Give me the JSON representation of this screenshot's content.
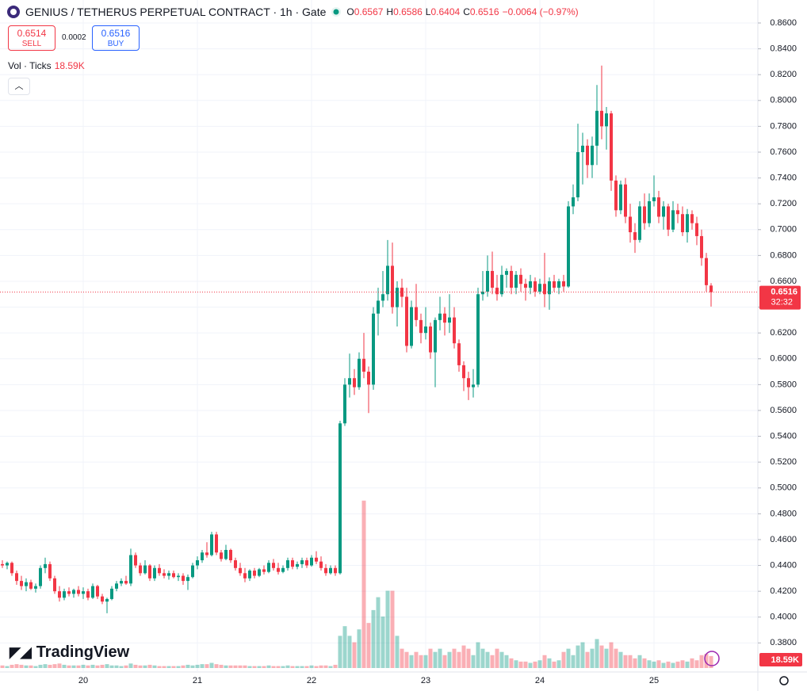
{
  "header": {
    "title": "GENIUS / TETHERUS PERPETUAL CONTRACT · 1h · Gate",
    "ohlc": [
      {
        "label": "O",
        "value": "0.6567"
      },
      {
        "label": "H",
        "value": "0.6586"
      },
      {
        "label": "L",
        "value": "0.6404"
      },
      {
        "label": "C",
        "value": "0.6516"
      }
    ],
    "change": "−0.0064 (−0.97%)",
    "sell": {
      "price": "0.6514",
      "label": "SELL"
    },
    "spread": "0.0002",
    "buy": {
      "price": "0.6516",
      "label": "BUY"
    },
    "volume_label": "Vol · Ticks",
    "volume_value": "18.59K",
    "brand": "TradingView"
  },
  "chart_data": {
    "type": "candlestick",
    "up_color": "#089981",
    "down_color": "#f23645",
    "ylim": [
      0.3575,
      0.8778
    ],
    "vlim": [
      0,
      320
    ],
    "yticks": [
      {
        "value": 0.86,
        "label": "0.8600"
      },
      {
        "value": 0.84,
        "label": "0.8400"
      },
      {
        "value": 0.82,
        "label": "0.8200"
      },
      {
        "value": 0.8,
        "label": "0.8000"
      },
      {
        "value": 0.78,
        "label": "0.7800"
      },
      {
        "value": 0.76,
        "label": "0.7600"
      },
      {
        "value": 0.74,
        "label": "0.7400"
      },
      {
        "value": 0.72,
        "label": "0.7200"
      },
      {
        "value": 0.7,
        "label": "0.7000"
      },
      {
        "value": 0.68,
        "label": "0.6800"
      },
      {
        "value": 0.66,
        "label": "0.6600"
      },
      {
        "value": 0.64,
        "label": "0.6400"
      },
      {
        "value": 0.62,
        "label": "0.6200"
      },
      {
        "value": 0.6,
        "label": "0.6000"
      },
      {
        "value": 0.58,
        "label": "0.5800"
      },
      {
        "value": 0.56,
        "label": "0.5600"
      },
      {
        "value": 0.54,
        "label": "0.5400"
      },
      {
        "value": 0.52,
        "label": "0.5200"
      },
      {
        "value": 0.5,
        "label": "0.5000"
      },
      {
        "value": 0.48,
        "label": "0.4800"
      },
      {
        "value": 0.46,
        "label": "0.4600"
      },
      {
        "value": 0.44,
        "label": "0.4400"
      },
      {
        "value": 0.42,
        "label": "0.4200"
      },
      {
        "value": 0.4,
        "label": "0.4000"
      },
      {
        "value": 0.38,
        "label": "0.3800"
      }
    ],
    "xticks": [
      20,
      21,
      22,
      23,
      24,
      25
    ],
    "last_price_label": "0.6516",
    "countdown": "32:32",
    "last_volume_label": "18.59K",
    "candles": [
      [
        0.441,
        0.444,
        0.438,
        0.44,
        4
      ],
      [
        0.44,
        0.443,
        0.437,
        0.442,
        3
      ],
      [
        0.442,
        0.443,
        0.432,
        0.434,
        5
      ],
      [
        0.434,
        0.436,
        0.425,
        0.428,
        6
      ],
      [
        0.428,
        0.432,
        0.421,
        0.424,
        5
      ],
      [
        0.424,
        0.43,
        0.42,
        0.427,
        4
      ],
      [
        0.427,
        0.429,
        0.421,
        0.422,
        4
      ],
      [
        0.422,
        0.426,
        0.419,
        0.424,
        3
      ],
      [
        0.424,
        0.44,
        0.422,
        0.438,
        5
      ],
      [
        0.438,
        0.446,
        0.434,
        0.441,
        6
      ],
      [
        0.441,
        0.443,
        0.428,
        0.43,
        5
      ],
      [
        0.43,
        0.432,
        0.418,
        0.42,
        6
      ],
      [
        0.42,
        0.424,
        0.412,
        0.415,
        7
      ],
      [
        0.415,
        0.422,
        0.413,
        0.42,
        5
      ],
      [
        0.42,
        0.423,
        0.416,
        0.418,
        4
      ],
      [
        0.418,
        0.422,
        0.415,
        0.421,
        4
      ],
      [
        0.421,
        0.424,
        0.416,
        0.418,
        4
      ],
      [
        0.418,
        0.423,
        0.414,
        0.42,
        5
      ],
      [
        0.42,
        0.422,
        0.413,
        0.415,
        4
      ],
      [
        0.415,
        0.426,
        0.414,
        0.424,
        5
      ],
      [
        0.424,
        0.425,
        0.414,
        0.416,
        4
      ],
      [
        0.416,
        0.418,
        0.41,
        0.412,
        5
      ],
      [
        0.412,
        0.415,
        0.403,
        0.414,
        6
      ],
      [
        0.414,
        0.424,
        0.413,
        0.422,
        4
      ],
      [
        0.422,
        0.428,
        0.42,
        0.426,
        4
      ],
      [
        0.426,
        0.43,
        0.424,
        0.428,
        3
      ],
      [
        0.428,
        0.432,
        0.425,
        0.426,
        4
      ],
      [
        0.426,
        0.453,
        0.424,
        0.448,
        7
      ],
      [
        0.448,
        0.45,
        0.438,
        0.44,
        5
      ],
      [
        0.44,
        0.442,
        0.432,
        0.434,
        4
      ],
      [
        0.434,
        0.444,
        0.433,
        0.44,
        4
      ],
      [
        0.44,
        0.441,
        0.428,
        0.43,
        5
      ],
      [
        0.43,
        0.44,
        0.428,
        0.438,
        4
      ],
      [
        0.438,
        0.441,
        0.432,
        0.434,
        3
      ],
      [
        0.434,
        0.437,
        0.43,
        0.432,
        3
      ],
      [
        0.432,
        0.436,
        0.429,
        0.434,
        3
      ],
      [
        0.434,
        0.436,
        0.43,
        0.431,
        3
      ],
      [
        0.431,
        0.434,
        0.428,
        0.432,
        3
      ],
      [
        0.432,
        0.434,
        0.425,
        0.428,
        4
      ],
      [
        0.428,
        0.433,
        0.421,
        0.431,
        5
      ],
      [
        0.431,
        0.442,
        0.43,
        0.44,
        4
      ],
      [
        0.44,
        0.447,
        0.437,
        0.444,
        5
      ],
      [
        0.444,
        0.452,
        0.442,
        0.45,
        6
      ],
      [
        0.45,
        0.458,
        0.446,
        0.448,
        6
      ],
      [
        0.448,
        0.466,
        0.447,
        0.464,
        8
      ],
      [
        0.464,
        0.466,
        0.448,
        0.45,
        6
      ],
      [
        0.45,
        0.452,
        0.443,
        0.445,
        5
      ],
      [
        0.445,
        0.456,
        0.444,
        0.452,
        4
      ],
      [
        0.452,
        0.453,
        0.442,
        0.444,
        4
      ],
      [
        0.444,
        0.446,
        0.436,
        0.438,
        4
      ],
      [
        0.438,
        0.442,
        0.432,
        0.434,
        4
      ],
      [
        0.434,
        0.438,
        0.427,
        0.43,
        4
      ],
      [
        0.43,
        0.437,
        0.428,
        0.436,
        3
      ],
      [
        0.436,
        0.438,
        0.43,
        0.432,
        3
      ],
      [
        0.432,
        0.438,
        0.431,
        0.437,
        3
      ],
      [
        0.437,
        0.44,
        0.433,
        0.435,
        3
      ],
      [
        0.435,
        0.444,
        0.434,
        0.442,
        4
      ],
      [
        0.442,
        0.445,
        0.436,
        0.438,
        3
      ],
      [
        0.438,
        0.442,
        0.433,
        0.435,
        3
      ],
      [
        0.435,
        0.44,
        0.434,
        0.438,
        3
      ],
      [
        0.438,
        0.446,
        0.436,
        0.444,
        4
      ],
      [
        0.444,
        0.446,
        0.437,
        0.439,
        3
      ],
      [
        0.439,
        0.443,
        0.437,
        0.441,
        3
      ],
      [
        0.441,
        0.446,
        0.438,
        0.444,
        3
      ],
      [
        0.444,
        0.446,
        0.438,
        0.44,
        3
      ],
      [
        0.44,
        0.448,
        0.439,
        0.446,
        4
      ],
      [
        0.446,
        0.451,
        0.441,
        0.443,
        3
      ],
      [
        0.443,
        0.447,
        0.436,
        0.438,
        4
      ],
      [
        0.438,
        0.441,
        0.432,
        0.434,
        4
      ],
      [
        0.434,
        0.44,
        0.433,
        0.438,
        3
      ],
      [
        0.438,
        0.44,
        0.432,
        0.434,
        5
      ],
      [
        0.434,
        0.552,
        0.433,
        0.55,
        50
      ],
      [
        0.55,
        0.585,
        0.548,
        0.58,
        65
      ],
      [
        0.58,
        0.604,
        0.57,
        0.585,
        50
      ],
      [
        0.585,
        0.592,
        0.572,
        0.578,
        40
      ],
      [
        0.578,
        0.605,
        0.576,
        0.6,
        60
      ],
      [
        0.6,
        0.62,
        0.585,
        0.59,
        260
      ],
      [
        0.59,
        0.594,
        0.558,
        0.58,
        70
      ],
      [
        0.58,
        0.64,
        0.576,
        0.635,
        90
      ],
      [
        0.635,
        0.655,
        0.618,
        0.645,
        110
      ],
      [
        0.645,
        0.668,
        0.64,
        0.65,
        80
      ],
      [
        0.65,
        0.692,
        0.645,
        0.672,
        120
      ],
      [
        0.672,
        0.69,
        0.635,
        0.64,
        120
      ],
      [
        0.64,
        0.66,
        0.625,
        0.655,
        50
      ],
      [
        0.655,
        0.662,
        0.64,
        0.648,
        30
      ],
      [
        0.648,
        0.655,
        0.605,
        0.61,
        25
      ],
      [
        0.61,
        0.645,
        0.608,
        0.64,
        20
      ],
      [
        0.64,
        0.658,
        0.625,
        0.63,
        25
      ],
      [
        0.63,
        0.635,
        0.612,
        0.62,
        20
      ],
      [
        0.62,
        0.64,
        0.615,
        0.625,
        20
      ],
      [
        0.625,
        0.628,
        0.6,
        0.605,
        30
      ],
      [
        0.605,
        0.632,
        0.578,
        0.63,
        25
      ],
      [
        0.63,
        0.648,
        0.622,
        0.635,
        30
      ],
      [
        0.635,
        0.64,
        0.618,
        0.628,
        20
      ],
      [
        0.628,
        0.65,
        0.62,
        0.632,
        25
      ],
      [
        0.632,
        0.64,
        0.608,
        0.612,
        30
      ],
      [
        0.612,
        0.615,
        0.59,
        0.595,
        25
      ],
      [
        0.595,
        0.598,
        0.575,
        0.585,
        35
      ],
      [
        0.585,
        0.59,
        0.568,
        0.578,
        30
      ],
      [
        0.578,
        0.592,
        0.57,
        0.58,
        20
      ],
      [
        0.58,
        0.655,
        0.578,
        0.65,
        40
      ],
      [
        0.65,
        0.668,
        0.645,
        0.652,
        30
      ],
      [
        0.652,
        0.68,
        0.648,
        0.668,
        25
      ],
      [
        0.668,
        0.683,
        0.65,
        0.655,
        20
      ],
      [
        0.655,
        0.665,
        0.645,
        0.65,
        30
      ],
      [
        0.65,
        0.672,
        0.648,
        0.665,
        25
      ],
      [
        0.665,
        0.67,
        0.655,
        0.668,
        20
      ],
      [
        0.668,
        0.672,
        0.65,
        0.655,
        15
      ],
      [
        0.655,
        0.668,
        0.65,
        0.665,
        12
      ],
      [
        0.665,
        0.67,
        0.652,
        0.658,
        10
      ],
      [
        0.658,
        0.662,
        0.645,
        0.655,
        10
      ],
      [
        0.655,
        0.665,
        0.65,
        0.66,
        8
      ],
      [
        0.66,
        0.663,
        0.648,
        0.652,
        10
      ],
      [
        0.652,
        0.662,
        0.65,
        0.658,
        12
      ],
      [
        0.658,
        0.682,
        0.64,
        0.65,
        20
      ],
      [
        0.65,
        0.663,
        0.638,
        0.66,
        15
      ],
      [
        0.66,
        0.665,
        0.652,
        0.655,
        10
      ],
      [
        0.655,
        0.662,
        0.65,
        0.66,
        12
      ],
      [
        0.66,
        0.665,
        0.652,
        0.656,
        25
      ],
      [
        0.656,
        0.722,
        0.655,
        0.718,
        30
      ],
      [
        0.718,
        0.735,
        0.712,
        0.725,
        20
      ],
      [
        0.725,
        0.782,
        0.722,
        0.76,
        35
      ],
      [
        0.76,
        0.775,
        0.735,
        0.765,
        40
      ],
      [
        0.765,
        0.77,
        0.74,
        0.75,
        25
      ],
      [
        0.75,
        0.772,
        0.74,
        0.765,
        30
      ],
      [
        0.765,
        0.812,
        0.75,
        0.792,
        45
      ],
      [
        0.792,
        0.827,
        0.77,
        0.78,
        35
      ],
      [
        0.78,
        0.795,
        0.762,
        0.79,
        30
      ],
      [
        0.79,
        0.792,
        0.73,
        0.738,
        40
      ],
      [
        0.738,
        0.742,
        0.71,
        0.715,
        30
      ],
      [
        0.715,
        0.738,
        0.712,
        0.735,
        25
      ],
      [
        0.735,
        0.74,
        0.705,
        0.71,
        20
      ],
      [
        0.71,
        0.72,
        0.69,
        0.698,
        20
      ],
      [
        0.698,
        0.705,
        0.682,
        0.692,
        15
      ],
      [
        0.692,
        0.722,
        0.69,
        0.718,
        20
      ],
      [
        0.718,
        0.728,
        0.7,
        0.705,
        15
      ],
      [
        0.705,
        0.728,
        0.702,
        0.722,
        12
      ],
      [
        0.722,
        0.742,
        0.718,
        0.725,
        10
      ],
      [
        0.725,
        0.73,
        0.705,
        0.71,
        12
      ],
      [
        0.71,
        0.722,
        0.7,
        0.718,
        8
      ],
      [
        0.718,
        0.72,
        0.695,
        0.7,
        10
      ],
      [
        0.7,
        0.722,
        0.698,
        0.715,
        8
      ],
      [
        0.715,
        0.72,
        0.705,
        0.712,
        10
      ],
      [
        0.712,
        0.718,
        0.695,
        0.698,
        12
      ],
      [
        0.698,
        0.716,
        0.69,
        0.712,
        10
      ],
      [
        0.712,
        0.715,
        0.7,
        0.705,
        15
      ],
      [
        0.705,
        0.71,
        0.688,
        0.695,
        12
      ],
      [
        0.695,
        0.7,
        0.672,
        0.678,
        20
      ],
      [
        0.678,
        0.682,
        0.652,
        0.657,
        22
      ],
      [
        0.6567,
        0.6586,
        0.6404,
        0.6516,
        18.59
      ]
    ]
  }
}
